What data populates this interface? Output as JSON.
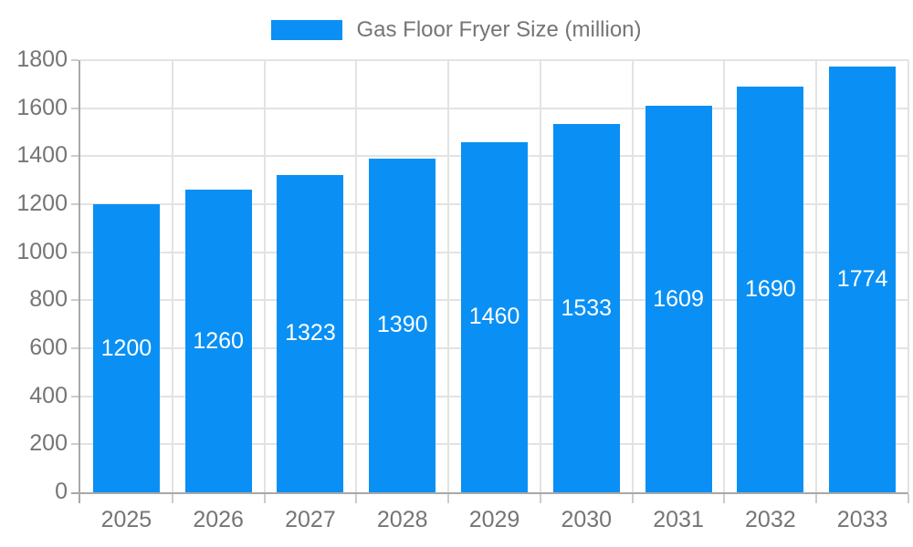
{
  "chart_data": {
    "type": "bar",
    "title": "Gas Floor Fryer Size (million)",
    "legend": [
      "Gas Floor Fryer Size (million)"
    ],
    "legend_position": "top",
    "categories": [
      "2025",
      "2026",
      "2027",
      "2028",
      "2029",
      "2030",
      "2031",
      "2032",
      "2033"
    ],
    "series": [
      {
        "name": "Gas Floor Fryer Size (million)",
        "values": [
          1200,
          1260,
          1323,
          1390,
          1460,
          1533,
          1609,
          1690,
          1774
        ]
      }
    ],
    "xlabel": "",
    "ylabel": "",
    "ylim": [
      0,
      1800
    ],
    "ytick_step": 200,
    "yticks": [
      0,
      200,
      400,
      600,
      800,
      1000,
      1200,
      1400,
      1600,
      1800
    ],
    "grid": true,
    "value_labels_position": "inside-center",
    "colors": {
      "bar": "#0a90f4",
      "grid": "#e3e3e3",
      "axis": "#a8a8a8",
      "tick": "#cccccc",
      "text": "#757575",
      "value_label": "#ffffff",
      "background": "#ffffff"
    }
  }
}
